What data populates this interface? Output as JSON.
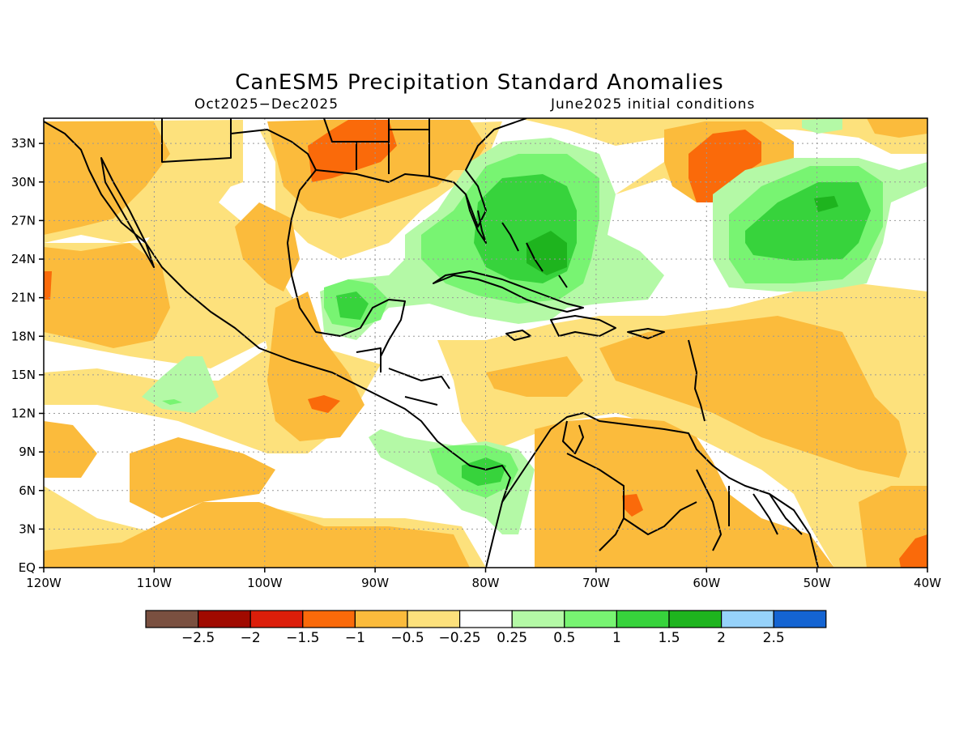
{
  "title": "CanESM5 Precipitation Standard Anomalies",
  "subtitle_left": "Oct2025−Dec2025",
  "subtitle_right": "June2025 initial conditions",
  "lon_ticks": [
    "120W",
    "110W",
    "100W",
    "90W",
    "80W",
    "70W",
    "60W",
    "50W",
    "40W"
  ],
  "lat_ticks": [
    "EQ",
    "3N",
    "6N",
    "9N",
    "12N",
    "15N",
    "18N",
    "21N",
    "24N",
    "27N",
    "30N",
    "33N"
  ],
  "colorbar": {
    "colors": [
      "#7a5040",
      "#a00a00",
      "#dc1e0a",
      "#fa6a0a",
      "#fbbb3c",
      "#fde17c",
      "#ffffff",
      "#b4f9a6",
      "#78f472",
      "#37d33c",
      "#1eb41e",
      "#96d2fa",
      "#1464d2"
    ],
    "labels": [
      "−2.5",
      "−2",
      "−1.5",
      "−1",
      "−0.5",
      "−0.25",
      "0.25",
      "0.5",
      "1",
      "1.5",
      "2",
      "2.5"
    ]
  }
}
